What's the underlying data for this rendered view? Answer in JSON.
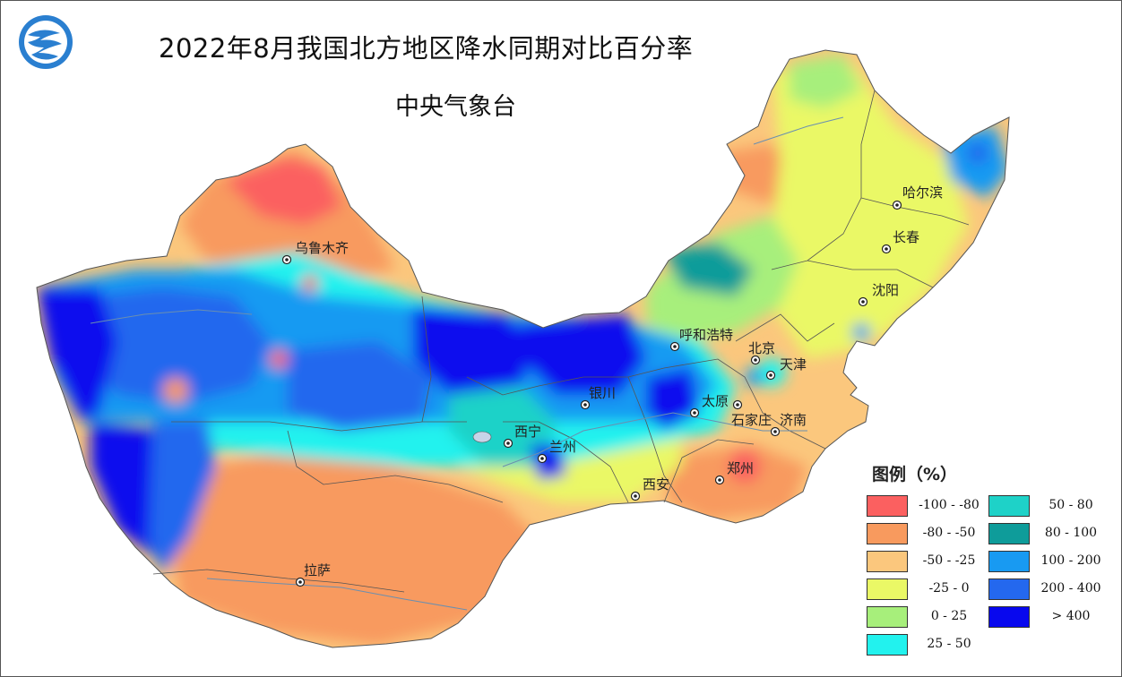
{
  "title": "2022年8月我国北方地区降水同期对比百分率",
  "subtitle": "中央气象台",
  "logo": {
    "icon": "cma-wave-logo-icon"
  },
  "legend": {
    "title": "图例（%）",
    "items": [
      {
        "label": "-100 - -80",
        "color": "#fb6060"
      },
      {
        "label": "-80 - -50",
        "color": "#f89a5e"
      },
      {
        "label": "-50 - -25",
        "color": "#fbc77d"
      },
      {
        "label": "-25 - 0",
        "color": "#eaf866"
      },
      {
        "label": "0 - 25",
        "color": "#a7ef7b"
      },
      {
        "label": "25 - 50",
        "color": "#22f2ee"
      },
      {
        "label": "50 - 80",
        "color": "#1ed2c8"
      },
      {
        "label": "80 - 100",
        "color": "#0e9c9a"
      },
      {
        "label": "100 - 200",
        "color": "#189af2"
      },
      {
        "label": "200 - 400",
        "color": "#2468ee"
      },
      {
        "label": "> 400",
        "color": "#0808ee"
      }
    ]
  },
  "cities": [
    {
      "name": "乌鲁木齐"
    },
    {
      "name": "哈尔滨"
    },
    {
      "name": "长春"
    },
    {
      "name": "沈阳"
    },
    {
      "name": "呼和浩特"
    },
    {
      "name": "北京"
    },
    {
      "name": "天津"
    },
    {
      "name": "太原"
    },
    {
      "name": "石家庄"
    },
    {
      "name": "济南"
    },
    {
      "name": "银川"
    },
    {
      "name": "西宁"
    },
    {
      "name": "兰州"
    },
    {
      "name": "郑州"
    },
    {
      "name": "西安"
    },
    {
      "name": "拉萨"
    }
  ]
}
